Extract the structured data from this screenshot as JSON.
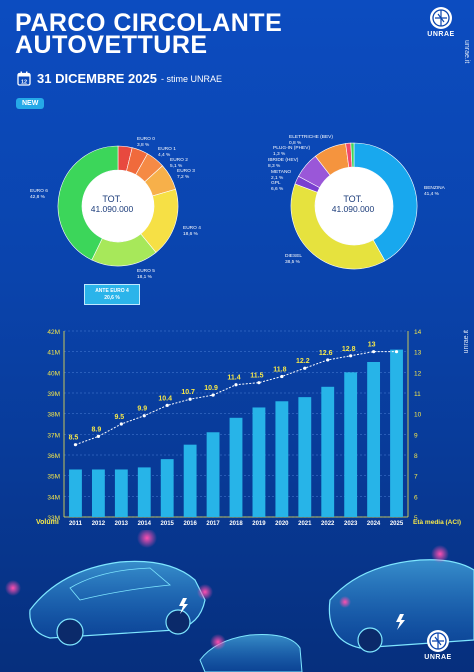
{
  "header": {
    "title_line1": "PARCO CIRCOLANTE",
    "title_line2": "AUTOVETTURE",
    "date": "31 DICEMBRE 2025",
    "date_note": "- stime UNRAE",
    "badge": "NEW",
    "brand": "UNRAE",
    "site": "unrae.it"
  },
  "donut_left": {
    "total_label": "TOT.",
    "total_value": "41.090.000",
    "ante_label": "ANTE EURO 4",
    "ante_value": "20,6 %",
    "slices": [
      {
        "name": "EURO 0",
        "pct": "3,8 %",
        "value": 3.8,
        "color": "#e8493f"
      },
      {
        "name": "EURO 1",
        "pct": "4,4 %",
        "value": 4.4,
        "color": "#f06a3c"
      },
      {
        "name": "EURO 2",
        "pct": "5,1 %",
        "value": 5.1,
        "color": "#f58a45"
      },
      {
        "name": "EURO 3",
        "pct": "7,2 %",
        "value": 7.2,
        "color": "#f7b04a"
      },
      {
        "name": "EURO 4",
        "pct": "18,6 %",
        "value": 18.6,
        "color": "#f6e045"
      },
      {
        "name": "EURO 5",
        "pct": "18,1 %",
        "value": 18.1,
        "color": "#a7e85a"
      },
      {
        "name": "EURO 6",
        "pct": "42,8 %",
        "value": 42.8,
        "color": "#3cd65a"
      }
    ]
  },
  "donut_right": {
    "total_label": "TOT.",
    "total_value": "41.090.000",
    "slices": [
      {
        "name": "BENZINA",
        "pct": "41,4 %",
        "value": 41.4,
        "color": "#18a8ee"
      },
      {
        "name": "DIESEL",
        "pct": "38,5 %",
        "value": 38.5,
        "color": "#e6e23e"
      },
      {
        "name": "METANO",
        "pct": "2,1 %",
        "value": 2.1,
        "color": "#7a3fd0"
      },
      {
        "name": "GPL",
        "pct": "6,6 %",
        "value": 6.6,
        "color": "#9a57d8"
      },
      {
        "name": "IBRIDE (HEV)",
        "pct": "8,3 %",
        "value": 8.3,
        "color": "#f5943e"
      },
      {
        "name": "PLUG-IN (PHEV)",
        "pct": "1,3 %",
        "value": 1.3,
        "color": "#f04a6a"
      },
      {
        "name": "ELETTRICHE (BEV)",
        "pct": "0,8 %",
        "value": 0.8,
        "color": "#3ed65a"
      }
    ]
  },
  "chart_data": {
    "type": "bar",
    "categories": [
      "2011",
      "2012",
      "2013",
      "2014",
      "2015",
      "2016",
      "2017",
      "2018",
      "2019",
      "2020",
      "2021",
      "2022",
      "2023",
      "2024",
      "2025"
    ],
    "series": [
      {
        "name": "Volumi",
        "type": "bar",
        "axis": "left",
        "values": [
          35.3,
          35.3,
          35.3,
          35.4,
          35.8,
          36.5,
          37.1,
          37.8,
          38.3,
          38.6,
          38.8,
          39.3,
          40.0,
          40.5,
          41.1
        ]
      },
      {
        "name": "Età media (ACI)",
        "type": "line",
        "axis": "right",
        "values": [
          8.5,
          8.9,
          9.5,
          9.9,
          10.4,
          10.7,
          10.9,
          11.4,
          11.5,
          11.8,
          12.2,
          12.6,
          12.8,
          13,
          13
        ],
        "labels": [
          "8.5",
          "8.9",
          "9.5",
          "9.9",
          "10.4",
          "10.7",
          "10.9",
          "11.4",
          "11.5",
          "11.8",
          "12.2",
          "12.6",
          "12.8",
          "13",
          ""
        ]
      }
    ],
    "y_left": {
      "min": 33,
      "max": 42,
      "ticks": [
        "33M",
        "34M",
        "35M",
        "36M",
        "37M",
        "38M",
        "39M",
        "40M",
        "41M",
        "42M"
      ]
    },
    "y_right": {
      "min": 5,
      "max": 14,
      "ticks": [
        "5",
        "6",
        "7",
        "8",
        "9",
        "10",
        "11",
        "12",
        "13",
        "14"
      ]
    },
    "xlabel": "Volumi",
    "y2label": "Età media (ACI)",
    "colors": {
      "bar": "#27b4e8",
      "line": "#ffffff",
      "label": "#f6e84a",
      "axis": "#f6e84a"
    }
  }
}
